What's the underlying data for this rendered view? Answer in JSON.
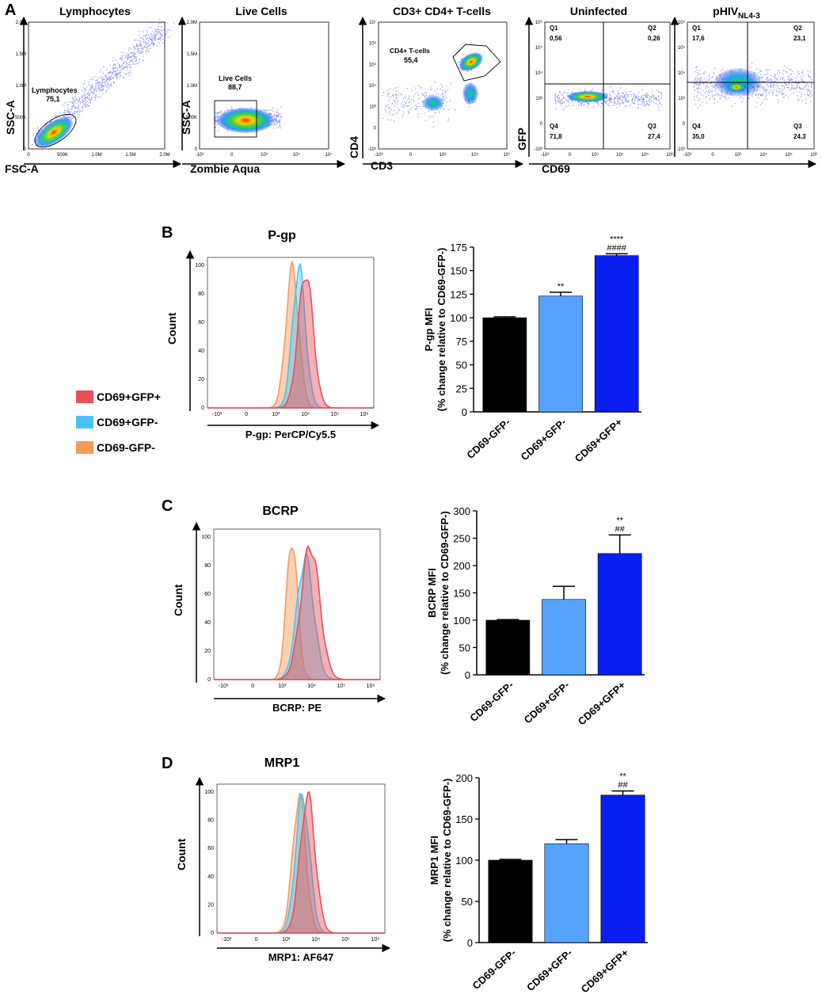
{
  "colors": {
    "gfp_pos": "#e8505a",
    "gfp_neg": "#4cc3ef",
    "cd69_neg": "#f79a5c",
    "bar_neg": "#000000",
    "bar_mid": "#55a3ff",
    "bar_pos": "#0a1ef2"
  },
  "panel_a": {
    "label": "A",
    "plots": [
      {
        "title": "Lymphocytes",
        "xlabel": "FSC-A",
        "ylabel": "SSC-A",
        "yticks": [
          "0",
          "500K",
          "1.0M",
          "1.5M",
          "2.0M"
        ],
        "xticks": [
          "0",
          "500K",
          "1.0M",
          "1.5M",
          "2.0M"
        ],
        "gate_name": "Lymphocytes",
        "gate_value": "75,1"
      },
      {
        "title": "Live Cells",
        "xlabel": "Zombie Aqua",
        "ylabel": "SSC-A",
        "yticks": [
          "0",
          "500K",
          "1.0M",
          "1.5M",
          "2.0M"
        ],
        "xticks": [
          "-10³",
          "0",
          "10³",
          "10⁵",
          "10⁷"
        ],
        "gate_name": "Live Cells",
        "gate_value": "88,7"
      },
      {
        "title": "CD3+ CD4+ T-cells",
        "xlabel": "CD3",
        "ylabel": "CD4",
        "yticks": [
          "-10³",
          "0",
          "10³",
          "10⁴",
          "10⁵",
          "10⁶",
          "10⁷"
        ],
        "xticks": [
          "-10³",
          "0",
          "10³",
          "10⁵",
          "10⁷"
        ],
        "gate_name": "CD4+ T-cells",
        "gate_value": "55,4"
      },
      {
        "title": "Uninfected",
        "xlabel": "CD69",
        "ylabel": "GFP",
        "yticks": [
          "-10³",
          "0",
          "10³",
          "10⁴",
          "10⁵",
          "10⁶"
        ],
        "xticks": [
          "-10³",
          "0",
          "10³",
          "10⁴",
          "10⁵",
          "10⁶"
        ],
        "quadrants": {
          "q1": "Q1",
          "q1v": "0,56",
          "q2": "Q2",
          "q2v": "0,26",
          "q3": "Q3",
          "q3v": "27,4",
          "q4": "Q4",
          "q4v": "71,8"
        }
      },
      {
        "title_main": "pHIV",
        "title_sub": "NL4-3",
        "xlabel": "CD69",
        "ylabel": "",
        "yticks": [
          "-10³",
          "0",
          "10³",
          "10⁴",
          "10⁵",
          "10⁶"
        ],
        "xticks": [
          "-10³",
          "0",
          "10³",
          "10⁴",
          "10⁵",
          "10⁶"
        ],
        "quadrants": {
          "q1": "Q1",
          "q1v": "17,6",
          "q2": "Q2",
          "q2v": "23,1",
          "q3": "Q3",
          "q3v": "24,3",
          "q4": "Q4",
          "q4v": "35,0"
        }
      }
    ]
  },
  "legend": [
    "CD69+GFP+",
    "CD69+GFP-",
    "CD69-GFP-"
  ],
  "chart_data": [
    {
      "type": "bar",
      "panel": "B",
      "title": "P-gp",
      "histogram_xlabel": "P-gp: PerCP/Cy5.5",
      "ylabel_line1": "P-gp MFI",
      "ylabel_line2": "(% change relative to CD69-GFP-)",
      "categories": [
        "CD69-GFP-",
        "CD69+GFP-",
        "CD69+GFP+"
      ],
      "values": [
        100,
        123,
        166
      ],
      "errors": [
        1,
        4,
        2
      ],
      "ylim": [
        0,
        175
      ],
      "yticks": [
        0,
        25,
        50,
        75,
        100,
        125,
        150,
        175
      ],
      "annotations": [
        "",
        "**",
        "****\n####"
      ]
    },
    {
      "type": "bar",
      "panel": "C",
      "title": "BCRP",
      "histogram_xlabel": "BCRP: PE",
      "ylabel_line1": "BCRP MFI",
      "ylabel_line2": "(% change relative to CD69-GFP-)",
      "categories": [
        "CD69-GFP-",
        "CD69+GFP-",
        "CD69+GFP+"
      ],
      "values": [
        100,
        138,
        222
      ],
      "errors": [
        1,
        24,
        34
      ],
      "ylim": [
        0,
        300
      ],
      "yticks": [
        0,
        50,
        100,
        150,
        200,
        250,
        300
      ],
      "annotations": [
        "",
        "",
        "**\n##"
      ]
    },
    {
      "type": "bar",
      "panel": "D",
      "title": "MRP1",
      "histogram_xlabel": "MRP1: AF647",
      "ylabel_line1": "MRP1 MFI",
      "ylabel_line2": "(% change relative to CD69-GFP-)",
      "categories": [
        "CD69-GFP-",
        "CD69+GFP-",
        "CD69+GFP+"
      ],
      "values": [
        100,
        120,
        179
      ],
      "errors": [
        1,
        5,
        5
      ],
      "ylim": [
        0,
        200
      ],
      "yticks": [
        0,
        50,
        100,
        150,
        200
      ],
      "annotations": [
        "",
        "",
        "**\n##"
      ]
    }
  ],
  "histograms": {
    "count_label": "Count",
    "yticks": [
      "0",
      "20",
      "40",
      "60",
      "80",
      "100"
    ],
    "xticks": [
      "-10³",
      "0",
      "10³",
      "10⁴",
      "10⁵",
      "10⁶"
    ]
  }
}
